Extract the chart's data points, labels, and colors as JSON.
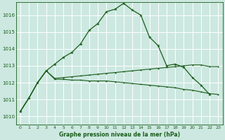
{
  "title": "Graphe pression niveau de la mer (hPa)",
  "bg_color": "#cce8e0",
  "grid_color": "#ffffff",
  "line_color": "#1a5c1a",
  "marker_color": "#1a5c1a",
  "xlim": [
    -0.5,
    23.5
  ],
  "ylim": [
    1009.5,
    1016.75
  ],
  "yticks": [
    1010,
    1011,
    1012,
    1013,
    1014,
    1015,
    1016
  ],
  "xticks": [
    0,
    1,
    2,
    3,
    4,
    5,
    6,
    7,
    8,
    9,
    10,
    11,
    12,
    13,
    14,
    15,
    16,
    17,
    18,
    19,
    20,
    21,
    22,
    23
  ],
  "series0_x": [
    0,
    1,
    2,
    3,
    4,
    5,
    6,
    7,
    8,
    9,
    10,
    11,
    12,
    13,
    14,
    15,
    16,
    17,
    18,
    19,
    20,
    21,
    22
  ],
  "series0_y": [
    1010.3,
    1011.1,
    1012.0,
    1012.7,
    1013.1,
    1013.5,
    1013.8,
    1014.3,
    1015.1,
    1015.5,
    1016.2,
    1016.35,
    1016.7,
    1016.3,
    1016.0,
    1014.7,
    1014.2,
    1013.0,
    1013.1,
    1012.9,
    1012.3,
    1011.85,
    1011.3
  ],
  "series1_x": [
    0,
    1,
    2,
    3,
    4,
    5,
    6,
    7,
    8,
    9,
    10,
    11,
    12,
    13,
    14,
    15,
    16,
    17,
    18,
    19,
    20,
    21,
    22,
    23
  ],
  "series1_y": [
    1010.3,
    1011.1,
    1012.0,
    1012.7,
    1012.2,
    1012.2,
    1012.15,
    1012.15,
    1012.1,
    1012.1,
    1012.1,
    1012.05,
    1012.0,
    1011.95,
    1011.9,
    1011.85,
    1011.8,
    1011.75,
    1011.7,
    1011.6,
    1011.55,
    1011.45,
    1011.35,
    1011.3
  ],
  "series2_x": [
    0,
    1,
    2,
    3,
    4,
    5,
    6,
    7,
    8,
    9,
    10,
    11,
    12,
    13,
    14,
    15,
    16,
    17,
    18,
    19,
    20,
    21,
    22,
    23
  ],
  "series2_y": [
    1010.3,
    1011.1,
    1012.0,
    1012.7,
    1012.25,
    1012.3,
    1012.35,
    1012.4,
    1012.45,
    1012.5,
    1012.55,
    1012.6,
    1012.65,
    1012.7,
    1012.75,
    1012.8,
    1012.85,
    1012.9,
    1012.95,
    1013.0,
    1013.05,
    1013.05,
    1012.95,
    1012.95
  ]
}
